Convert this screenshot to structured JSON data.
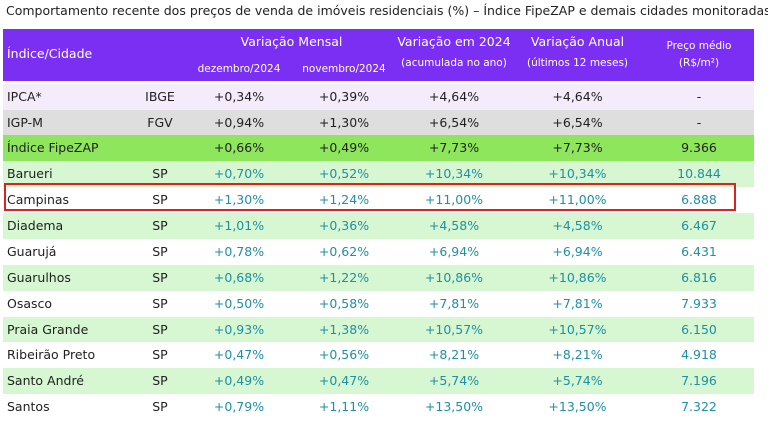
{
  "title": "Comportamento recente dos preços de venda de imóveis residenciais (%) – Índice FipeZAP e demais cidades monitoradas",
  "header": {
    "col_name": "Índice/Cidade",
    "group_monthly": "Variação Mensal",
    "month1": "dezembro/2024",
    "month2": "novembro/2024",
    "year_line1": "Variação em 2024",
    "year_line2": "(acumulada no ano)",
    "annual_line1": "Variação Anual",
    "annual_line2": "(últimos 12 meses)",
    "price_line1": "Preço médio",
    "price_line2": "(R$/m²)"
  },
  "colors": {
    "header_bg": "#7b2ff3",
    "fipezap_row": "#8ee65d",
    "city_row_alt": "#d6f7d2",
    "ipca_row": "#f4ecfb",
    "igpm_row": "#dedede",
    "highlight_border": "#d8231f",
    "value_text": "#1f8fa3"
  },
  "rows": [
    {
      "name": "IPCA*",
      "uf": "IBGE",
      "dec": "+0,34%",
      "nov": "+0,39%",
      "year": "+4,64%",
      "annual": "+4,64%",
      "price": "-"
    },
    {
      "name": "IGP-M",
      "uf": "FGV",
      "dec": "+0,94%",
      "nov": "+1,30%",
      "year": "+6,54%",
      "annual": "+6,54%",
      "price": "-"
    },
    {
      "name": "Índice FipeZAP",
      "uf": "",
      "dec": "+0,66%",
      "nov": "+0,49%",
      "year": "+7,73%",
      "annual": "+7,73%",
      "price": "9.366"
    },
    {
      "name": "Barueri",
      "uf": "SP",
      "dec": "+0,70%",
      "nov": "+0,52%",
      "year": "+10,34%",
      "annual": "+10,34%",
      "price": "10.844"
    },
    {
      "name": "Campinas",
      "uf": "SP",
      "dec": "+1,30%",
      "nov": "+1,24%",
      "year": "+11,00%",
      "annual": "+11,00%",
      "price": "6.888"
    },
    {
      "name": "Diadema",
      "uf": "SP",
      "dec": "+1,01%",
      "nov": "+0,36%",
      "year": "+4,58%",
      "annual": "+4,58%",
      "price": "6.467"
    },
    {
      "name": "Guarujá",
      "uf": "SP",
      "dec": "+0,78%",
      "nov": "+0,62%",
      "year": "+6,94%",
      "annual": "+6,94%",
      "price": "6.431"
    },
    {
      "name": "Guarulhos",
      "uf": "SP",
      "dec": "+0,68%",
      "nov": "+1,22%",
      "year": "+10,86%",
      "annual": "+10,86%",
      "price": "6.816"
    },
    {
      "name": "Osasco",
      "uf": "SP",
      "dec": "+0,50%",
      "nov": "+0,58%",
      "year": "+7,81%",
      "annual": "+7,81%",
      "price": "7.933"
    },
    {
      "name": "Praia Grande",
      "uf": "SP",
      "dec": "+0,93%",
      "nov": "+1,38%",
      "year": "+10,57%",
      "annual": "+10,57%",
      "price": "6.150"
    },
    {
      "name": "Ribeirão Preto",
      "uf": "SP",
      "dec": "+0,47%",
      "nov": "+0,56%",
      "year": "+8,21%",
      "annual": "+8,21%",
      "price": "4.918"
    },
    {
      "name": "Santo André",
      "uf": "SP",
      "dec": "+0,49%",
      "nov": "+0,47%",
      "year": "+5,74%",
      "annual": "+5,74%",
      "price": "7.196"
    },
    {
      "name": "Santos",
      "uf": "SP",
      "dec": "+0,79%",
      "nov": "+1,11%",
      "year": "+13,50%",
      "annual": "+13,50%",
      "price": "7.322"
    }
  ]
}
